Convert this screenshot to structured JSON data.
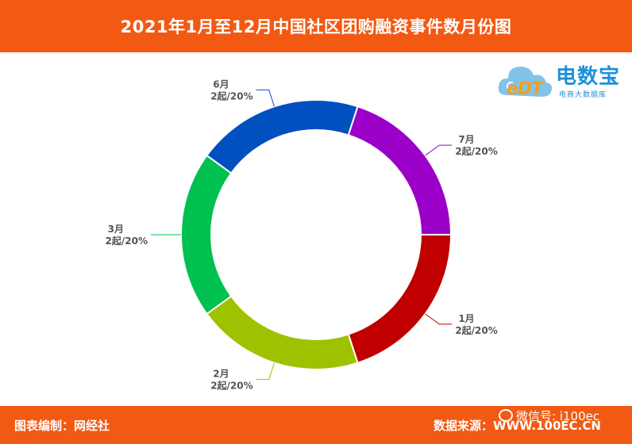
{
  "header": {
    "title": "2021年1月至12月中国社区团购融资事件数月份图"
  },
  "logo": {
    "name": "电数宝",
    "sub": "电商大数据库",
    "mark": "eDT"
  },
  "footer": {
    "left": "图表编制：网经社",
    "right": "数据来源：WWW.100EC.CN",
    "watermark": "微信号: i100ec"
  },
  "colors": {
    "header": "#f25a14",
    "slices": [
      "#c00000",
      "#9ec200",
      "#00c050",
      "#0050c0",
      "#9a00c8"
    ]
  },
  "chart_data": {
    "type": "pie",
    "variant": "donut",
    "title": "2021年1月至12月中国社区团购融资事件数月份图",
    "unit": "起",
    "slices": [
      {
        "label": "1月",
        "value": 2,
        "value_text": "2起/20%",
        "percent": 20
      },
      {
        "label": "2月",
        "value": 2,
        "value_text": "2起/20%",
        "percent": 20
      },
      {
        "label": "3月",
        "value": 2,
        "value_text": "2起/20%",
        "percent": 20
      },
      {
        "label": "6月",
        "value": 2,
        "value_text": "2起/20%",
        "percent": 20
      },
      {
        "label": "7月",
        "value": 2,
        "value_text": "2起/20%",
        "percent": 20
      }
    ]
  }
}
